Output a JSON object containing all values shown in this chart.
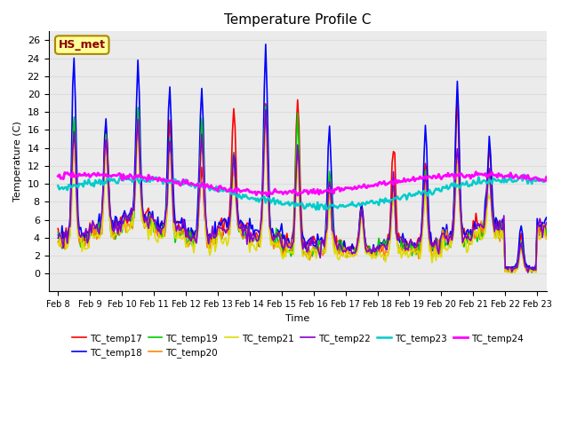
{
  "title": "Temperature Profile C",
  "xlabel": "Time",
  "ylabel": "Temperature (C)",
  "ylim": [
    -2,
    27
  ],
  "yticks": [
    0,
    2,
    4,
    6,
    8,
    10,
    12,
    14,
    16,
    18,
    20,
    22,
    24,
    26
  ],
  "annotation": "HS_met",
  "annotation_color": "#8B0000",
  "annotation_bg": "#FFFF99",
  "series_order": [
    "TC_temp17",
    "TC_temp18",
    "TC_temp19",
    "TC_temp20",
    "TC_temp21",
    "TC_temp22",
    "TC_temp23",
    "TC_temp24"
  ],
  "series": {
    "TC_temp17": {
      "color": "#FF0000",
      "lw": 1.2
    },
    "TC_temp18": {
      "color": "#0000FF",
      "lw": 1.2
    },
    "TC_temp19": {
      "color": "#00CC00",
      "lw": 1.2
    },
    "TC_temp20": {
      "color": "#FF8800",
      "lw": 1.2
    },
    "TC_temp21": {
      "color": "#DDDD00",
      "lw": 1.2
    },
    "TC_temp22": {
      "color": "#8800CC",
      "lw": 1.2
    },
    "TC_temp23": {
      "color": "#00CCCC",
      "lw": 1.8
    },
    "TC_temp24": {
      "color": "#FF00FF",
      "lw": 2.0
    }
  },
  "xtick_labels": [
    "Feb 8",
    "Feb 9",
    "Feb 10",
    "Feb 11",
    "Feb 12",
    "Feb 13",
    "Feb 14",
    "Feb 15",
    "Feb 16",
    "Feb 17",
    "Feb 18",
    "Feb 19",
    "Feb 20",
    "Feb 21",
    "Feb 22",
    "Feb 23"
  ],
  "n_days": 16,
  "pts_per_day": 24,
  "grid_color": "#DDDDDD",
  "bg_color": "#EBEBEB"
}
